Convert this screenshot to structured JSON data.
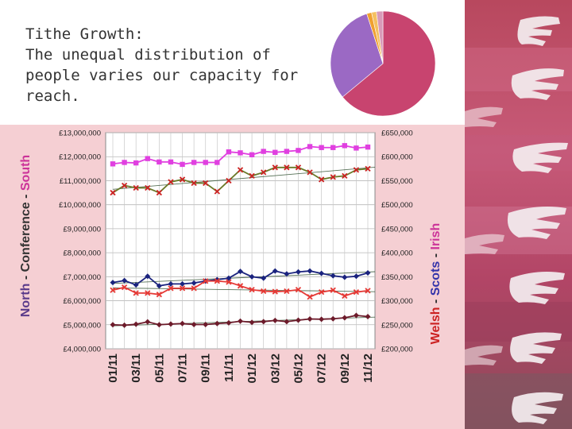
{
  "title_lines": [
    "Tithe Growth:",
    "The unequal distribution of",
    "people varies our capacity for",
    "reach."
  ],
  "pie": {
    "slices": [
      {
        "value": 64,
        "color": "#c8446f"
      },
      {
        "value": 31,
        "color": "#9b69c4"
      },
      {
        "value": 1.5,
        "color": "#f0a030"
      },
      {
        "value": 1.5,
        "color": "#f5c060"
      },
      {
        "value": 2,
        "color": "#d89ab8"
      }
    ]
  },
  "chart_data": {
    "type": "line",
    "categories": [
      "01/11",
      "02/11",
      "03/11",
      "04/11",
      "05/11",
      "06/11",
      "07/11",
      "08/11",
      "09/11",
      "10/11",
      "11/11",
      "12/11",
      "01/12",
      "02/12",
      "03/12",
      "04/12",
      "05/12",
      "06/12",
      "07/12",
      "08/12",
      "09/12",
      "10/12",
      "11/12"
    ],
    "x_tick_labels": [
      "01/11",
      "03/11",
      "05/11",
      "07/11",
      "09/11",
      "11/11",
      "01/12",
      "03/12",
      "05/12",
      "07/12",
      "09/12",
      "11/12"
    ],
    "left_axis": {
      "label_parts": [
        {
          "text": "North",
          "color": "#5a3a8a"
        },
        {
          "text": " - ",
          "color": "#333333"
        },
        {
          "text": "Conference",
          "color": "#333333"
        },
        {
          "text": " - ",
          "color": "#333333"
        },
        {
          "text": "South",
          "color": "#cc3399"
        }
      ],
      "ylim": [
        4000000,
        13000000
      ],
      "ticks": [
        "£4,000,000",
        "£5,000,000",
        "£6,000,000",
        "£7,000,000",
        "£8,000,000",
        "£9,000,000",
        "£10,000,000",
        "£11,000,000",
        "£12,000,000",
        "£13,000,000"
      ]
    },
    "right_axis": {
      "label_parts": [
        {
          "text": "Welsh",
          "color": "#cc2222"
        },
        {
          "text": " - ",
          "color": "#333333"
        },
        {
          "text": "Scots",
          "color": "#3333aa"
        },
        {
          "text": " - ",
          "color": "#333333"
        },
        {
          "text": "Irish",
          "color": "#cc3399"
        }
      ],
      "ylim": [
        200000,
        650000
      ],
      "ticks": [
        "£200,000",
        "£250,000",
        "£300,000",
        "£350,000",
        "£400,000",
        "£450,000",
        "£500,000",
        "£550,000",
        "£600,000",
        "£650,000"
      ]
    },
    "grid": true,
    "series": [
      {
        "axis": "right",
        "color": "#e040e0",
        "marker": "square",
        "trend": false,
        "values": [
          585000,
          588000,
          587000,
          596000,
          589000,
          589000,
          584000,
          588000,
          588000,
          588000,
          610000,
          608000,
          604000,
          611000,
          609000,
          611000,
          613000,
          621000,
          619000,
          619000,
          623000,
          618000,
          620000
        ]
      },
      {
        "axis": "left",
        "color": "#6a7a2a",
        "marker": "x",
        "markerColor": "#cc2222",
        "trend": true,
        "values": [
          10500000,
          10800000,
          10700000,
          10700000,
          10500000,
          10950000,
          11050000,
          10900000,
          10900000,
          10550000,
          11000000,
          11450000,
          11200000,
          11350000,
          11550000,
          11550000,
          11550000,
          11350000,
          11050000,
          11150000,
          11200000,
          11450000,
          11500000
        ]
      },
      {
        "axis": "right",
        "color": "#1a237e",
        "marker": "diamond",
        "trend": true,
        "values": [
          338000,
          342000,
          333000,
          351000,
          331000,
          335000,
          335000,
          337000,
          341000,
          344000,
          347000,
          361000,
          350000,
          347000,
          362000,
          356000,
          360000,
          362000,
          357000,
          352000,
          349000,
          351000,
          358000
        ]
      },
      {
        "axis": "right",
        "color": "#e53935",
        "marker": "x",
        "trend": true,
        "values": [
          322000,
          328000,
          316000,
          316000,
          313000,
          326000,
          326000,
          326000,
          341000,
          341000,
          339000,
          331000,
          323000,
          320000,
          319000,
          320000,
          323000,
          308000,
          318000,
          322000,
          310000,
          318000,
          321000
        ]
      },
      {
        "axis": "left",
        "color": "#6d1b2b",
        "marker": "diamond",
        "trend": true,
        "values": [
          5000000,
          4980000,
          5020000,
          5120000,
          5000000,
          5030000,
          5050000,
          5010000,
          5010000,
          5050000,
          5080000,
          5150000,
          5100000,
          5130000,
          5180000,
          5130000,
          5190000,
          5240000,
          5230000,
          5250000,
          5290000,
          5390000,
          5340000
        ]
      }
    ]
  }
}
